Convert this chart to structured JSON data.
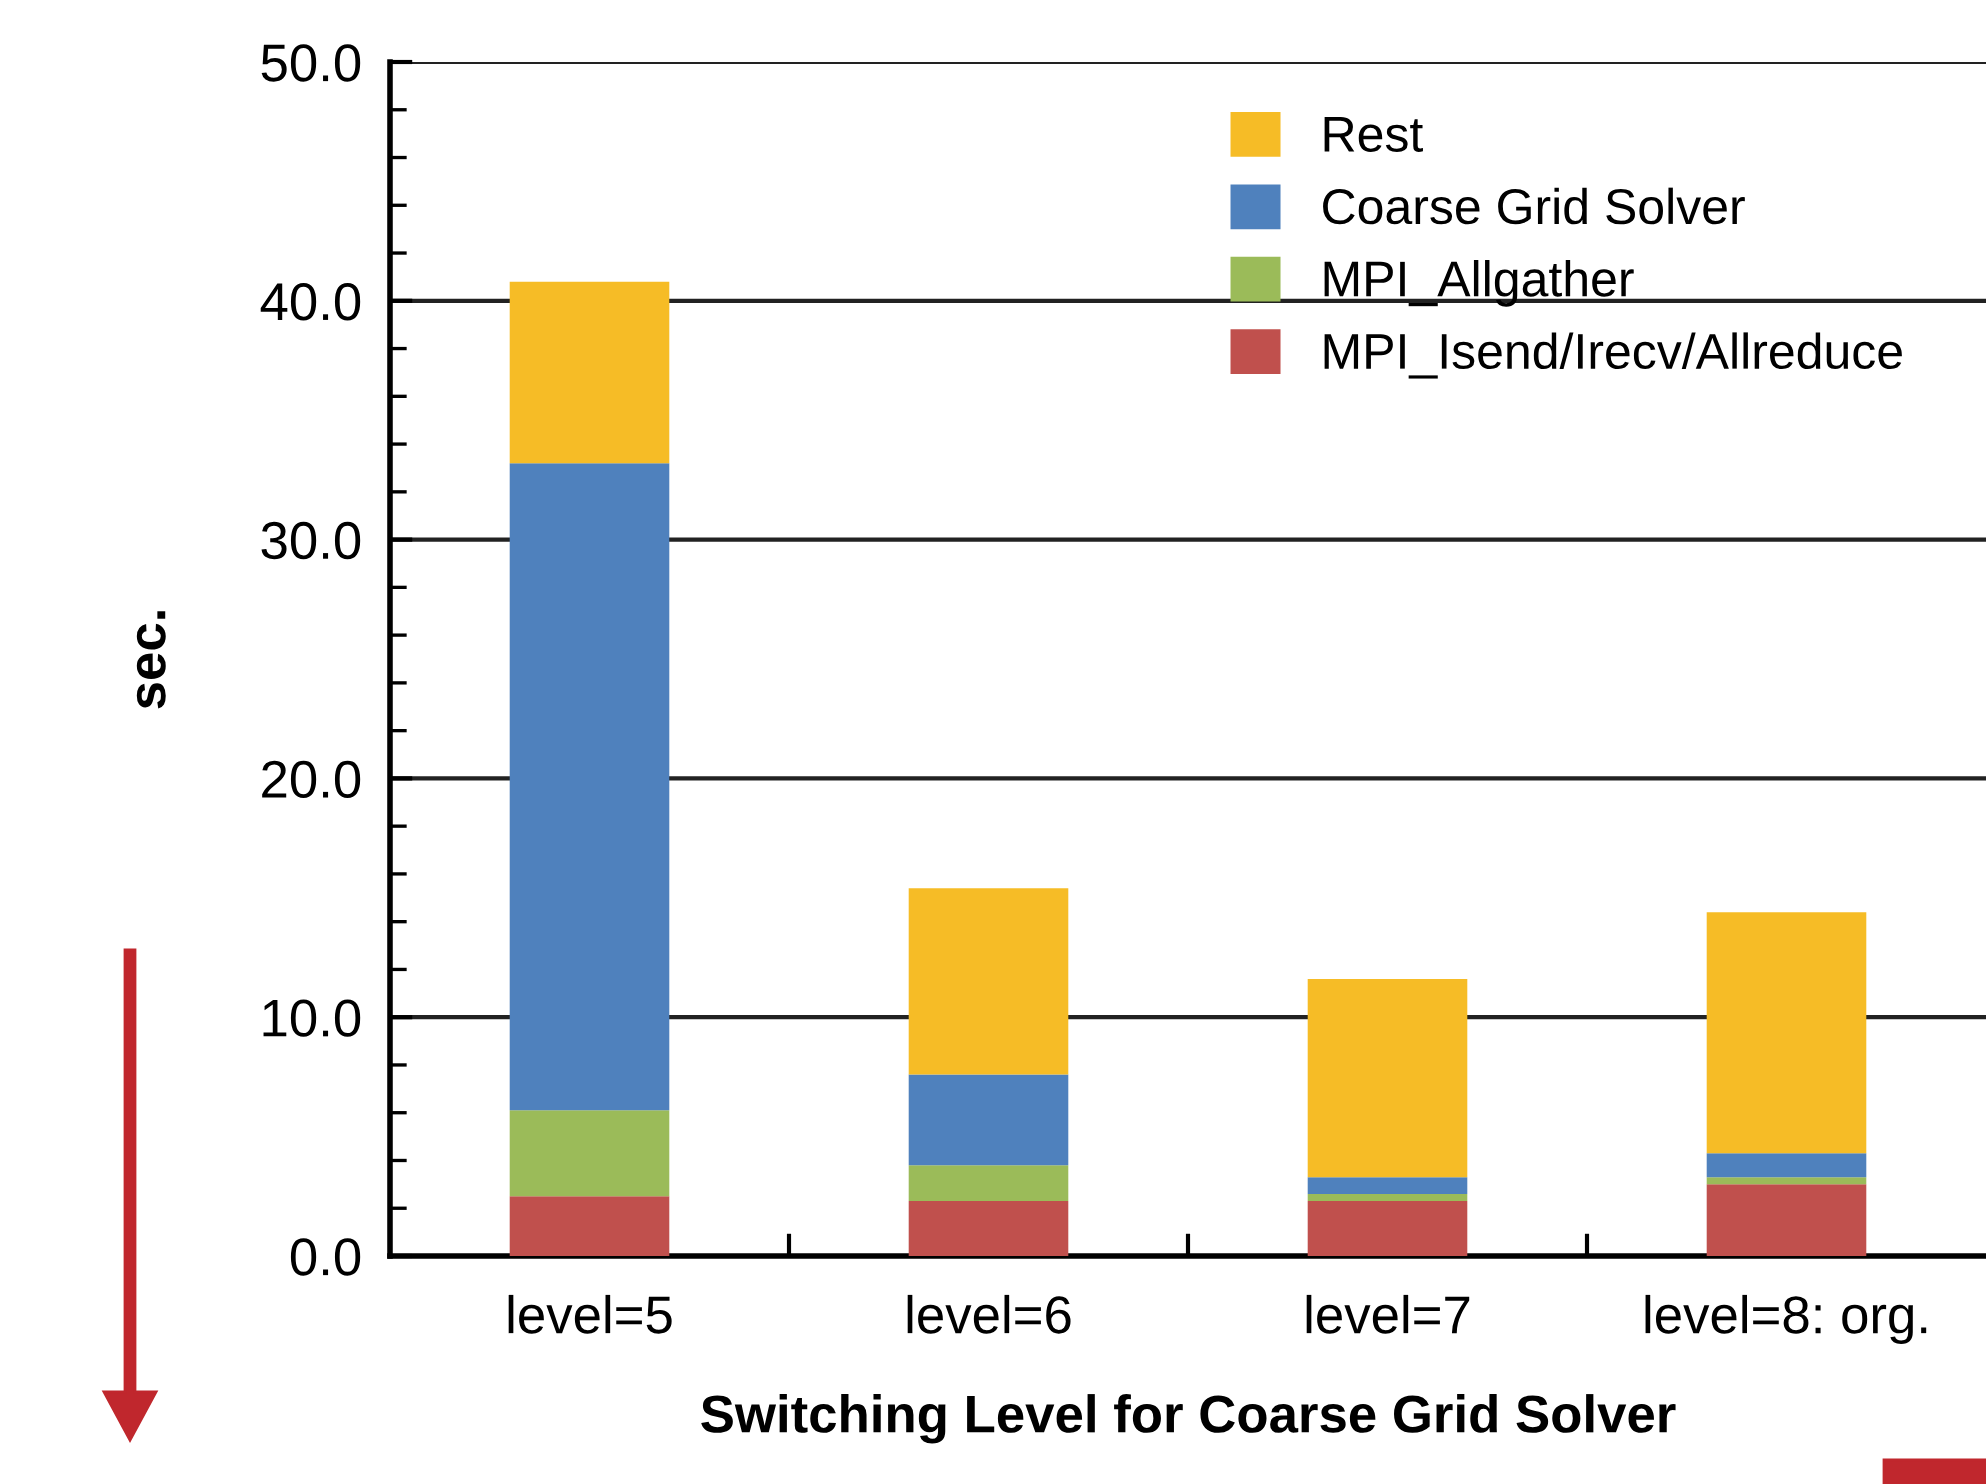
{
  "chart_data": {
    "type": "bar",
    "stacked": true,
    "xlabel": "Switching Level for Coarse Grid Solver",
    "ylabel": "sec.",
    "categories": [
      "level=5",
      "level=6",
      "level=7",
      "level=8: org."
    ],
    "series": [
      {
        "name": "MPI_Isend/Irecv/Allreduce",
        "color": "#c0504d",
        "values": [
          2.5,
          2.3,
          2.3,
          3.0
        ]
      },
      {
        "name": "MPI_Allgather",
        "color": "#9bbb59",
        "values": [
          3.6,
          1.5,
          0.3,
          0.3
        ]
      },
      {
        "name": "Coarse Grid Solver",
        "color": "#4f81bd",
        "values": [
          27.1,
          3.8,
          0.7,
          1.0
        ]
      },
      {
        "name": "Rest",
        "color": "#f6bc26",
        "values": [
          7.6,
          7.8,
          8.3,
          10.1
        ]
      }
    ],
    "ylim": [
      0,
      50
    ],
    "yticks": [
      {
        "value": 0,
        "label": "0.0"
      },
      {
        "value": 10,
        "label": "10.0"
      },
      {
        "value": 20,
        "label": "20.0"
      },
      {
        "value": 30,
        "label": "30.0"
      },
      {
        "value": 40,
        "label": "40.0"
      },
      {
        "value": 50,
        "label": "50.0"
      }
    ],
    "grid": "y",
    "legend": "top right"
  }
}
